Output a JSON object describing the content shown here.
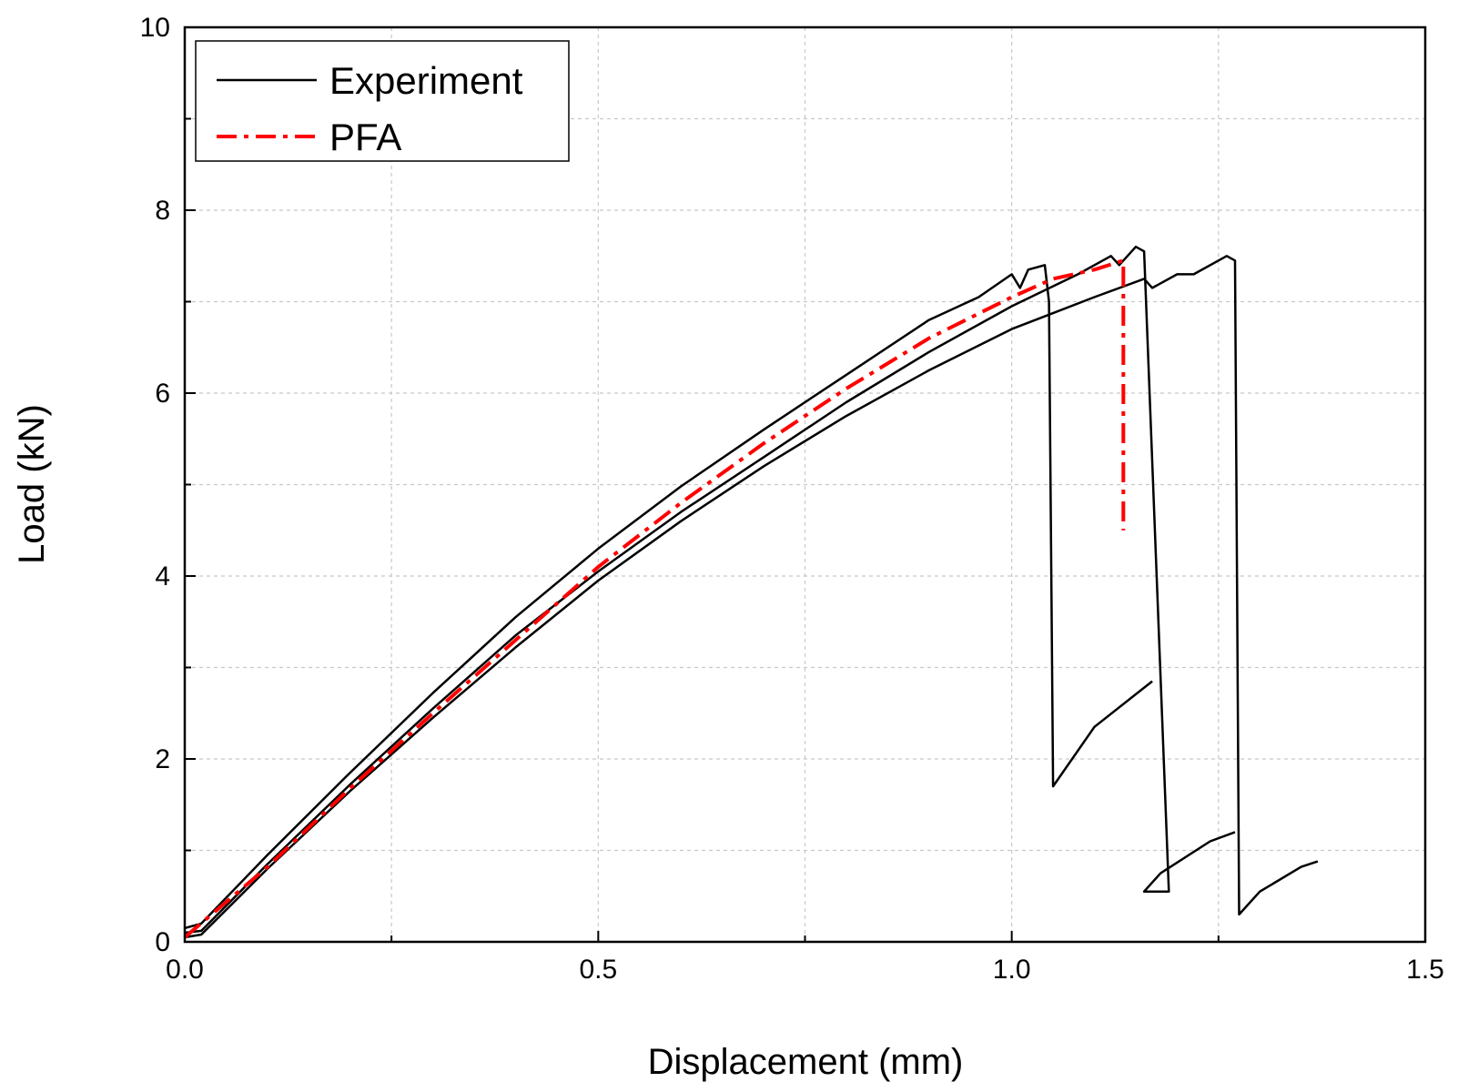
{
  "chart_data": {
    "type": "line",
    "title": "",
    "xlabel": "Displacement (mm)",
    "ylabel": "Load (kN)",
    "xlim": [
      0,
      1.5
    ],
    "ylim": [
      0,
      10
    ],
    "xticks": [
      0,
      0.25,
      0.5,
      0.75,
      1.0,
      1.25,
      1.5
    ],
    "yticks": [
      0,
      1,
      2,
      3,
      4,
      5,
      6,
      7,
      8,
      9,
      10
    ],
    "xtick_labels": [
      {
        "value": 0.0,
        "label": "0.0"
      },
      {
        "value": 0.5,
        "label": "0.5"
      },
      {
        "value": 1.0,
        "label": "1.0"
      },
      {
        "value": 1.5,
        "label": "1.5"
      }
    ],
    "ytick_labels": [
      {
        "value": 0,
        "label": "0"
      },
      {
        "value": 2,
        "label": "2"
      },
      {
        "value": 4,
        "label": "4"
      },
      {
        "value": 6,
        "label": "6"
      },
      {
        "value": 8,
        "label": "8"
      },
      {
        "value": 10,
        "label": "10"
      }
    ],
    "grid": true,
    "legend_position": "top-left",
    "legend": [
      {
        "label": "Experiment",
        "color": "#000000",
        "style": "solid"
      },
      {
        "label": "PFA",
        "color": "#ff0000",
        "style": "dashdot"
      }
    ],
    "series": [
      {
        "name": "Experiment",
        "legend_label": "Experiment",
        "color": "#000000",
        "style": "solid",
        "points": [
          [
            0.0,
            0.15
          ],
          [
            0.02,
            0.2
          ],
          [
            0.1,
            0.95
          ],
          [
            0.2,
            1.85
          ],
          [
            0.3,
            2.72
          ],
          [
            0.4,
            3.55
          ],
          [
            0.5,
            4.3
          ],
          [
            0.6,
            4.98
          ],
          [
            0.7,
            5.6
          ],
          [
            0.8,
            6.2
          ],
          [
            0.9,
            6.8
          ],
          [
            0.96,
            7.05
          ],
          [
            1.0,
            7.3
          ],
          [
            1.01,
            7.15
          ],
          [
            1.02,
            7.35
          ],
          [
            1.04,
            7.4
          ],
          [
            1.045,
            7.0
          ],
          [
            1.05,
            1.7
          ],
          [
            1.1,
            2.35
          ],
          [
            1.17,
            2.85
          ]
        ]
      },
      {
        "name": "Experiment 2",
        "color": "#000000",
        "style": "solid",
        "points": [
          [
            0.0,
            0.1
          ],
          [
            0.02,
            0.12
          ],
          [
            0.1,
            0.85
          ],
          [
            0.2,
            1.72
          ],
          [
            0.3,
            2.55
          ],
          [
            0.4,
            3.35
          ],
          [
            0.5,
            4.05
          ],
          [
            0.6,
            4.7
          ],
          [
            0.7,
            5.3
          ],
          [
            0.8,
            5.9
          ],
          [
            0.9,
            6.45
          ],
          [
            1.0,
            6.95
          ],
          [
            1.08,
            7.3
          ],
          [
            1.12,
            7.5
          ],
          [
            1.13,
            7.4
          ],
          [
            1.15,
            7.6
          ],
          [
            1.16,
            7.55
          ],
          [
            1.19,
            0.55
          ],
          [
            1.16,
            0.55
          ],
          [
            1.18,
            0.75
          ],
          [
            1.24,
            1.1
          ],
          [
            1.27,
            1.2
          ]
        ]
      },
      {
        "name": "Experiment 3",
        "color": "#000000",
        "style": "solid",
        "points": [
          [
            0.0,
            0.05
          ],
          [
            0.02,
            0.08
          ],
          [
            0.1,
            0.8
          ],
          [
            0.2,
            1.65
          ],
          [
            0.3,
            2.45
          ],
          [
            0.4,
            3.22
          ],
          [
            0.5,
            3.95
          ],
          [
            0.6,
            4.6
          ],
          [
            0.7,
            5.2
          ],
          [
            0.8,
            5.75
          ],
          [
            0.9,
            6.25
          ],
          [
            1.0,
            6.7
          ],
          [
            1.1,
            7.05
          ],
          [
            1.16,
            7.25
          ],
          [
            1.17,
            7.15
          ],
          [
            1.2,
            7.3
          ],
          [
            1.22,
            7.3
          ],
          [
            1.26,
            7.5
          ],
          [
            1.27,
            7.45
          ],
          [
            1.275,
            0.3
          ],
          [
            1.3,
            0.55
          ],
          [
            1.35,
            0.82
          ],
          [
            1.37,
            0.88
          ]
        ]
      },
      {
        "name": "PFA",
        "legend_label": "PFA",
        "color": "#ff0000",
        "style": "dashdot",
        "points": [
          [
            0.0,
            0.05
          ],
          [
            0.1,
            0.82
          ],
          [
            0.2,
            1.68
          ],
          [
            0.3,
            2.5
          ],
          [
            0.4,
            3.3
          ],
          [
            0.5,
            4.1
          ],
          [
            0.6,
            4.8
          ],
          [
            0.7,
            5.45
          ],
          [
            0.8,
            6.05
          ],
          [
            0.9,
            6.6
          ],
          [
            1.0,
            7.05
          ],
          [
            1.05,
            7.25
          ],
          [
            1.1,
            7.35
          ],
          [
            1.135,
            7.45
          ],
          [
            1.135,
            4.5
          ]
        ]
      }
    ]
  }
}
